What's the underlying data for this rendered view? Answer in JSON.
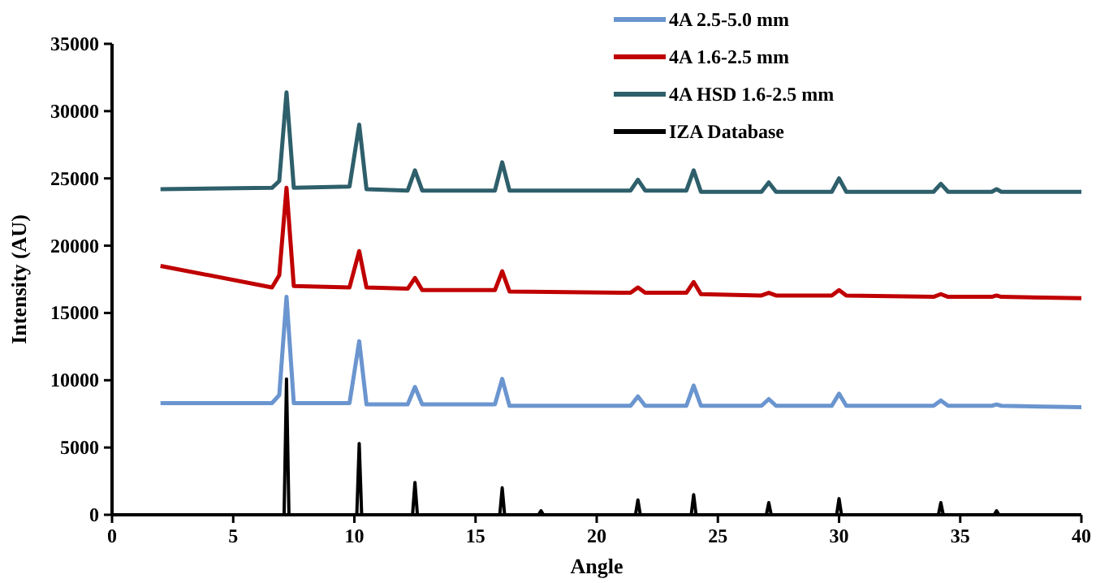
{
  "chart_data": {
    "type": "line",
    "xlabel": "Angle",
    "ylabel": "Intensity (AU)",
    "xlim": [
      0,
      40
    ],
    "xticks": [
      0,
      5,
      10,
      15,
      20,
      25,
      30,
      35,
      40
    ],
    "ylim": [
      0,
      35000
    ],
    "yticks": [
      0,
      5000,
      10000,
      15000,
      20000,
      25000,
      30000,
      35000
    ],
    "grid": false,
    "legend": "top right",
    "marker": "none",
    "line_style": "solid",
    "series": [
      {
        "name": "4A 2.5-5.0 mm",
        "color": "#6a95cf",
        "x": [
          2,
          6.6,
          6.9,
          7.2,
          7.5,
          9.8,
          10.2,
          10.5,
          12.2,
          12.5,
          12.8,
          15.8,
          16.1,
          16.4,
          21.4,
          21.7,
          22.0,
          23.7,
          24.0,
          24.3,
          26.8,
          27.1,
          27.4,
          29.7,
          30.0,
          30.3,
          33.9,
          34.2,
          34.5,
          36.3,
          36.5,
          36.7,
          40
        ],
        "values": [
          8300,
          8300,
          8900,
          16200,
          8300,
          8300,
          12900,
          8200,
          8200,
          9500,
          8200,
          8200,
          10100,
          8100,
          8100,
          8800,
          8100,
          8100,
          9600,
          8100,
          8100,
          8600,
          8100,
          8100,
          9000,
          8100,
          8100,
          8500,
          8100,
          8100,
          8200,
          8100,
          8000
        ]
      },
      {
        "name": "4A 1.6-2.5 mm",
        "color": "#c00000",
        "x": [
          2,
          6.6,
          6.9,
          7.2,
          7.5,
          9.8,
          10.2,
          10.5,
          12.2,
          12.5,
          12.8,
          15.8,
          16.1,
          16.4,
          21.4,
          21.7,
          22.0,
          23.7,
          24.0,
          24.3,
          26.8,
          27.1,
          27.4,
          29.7,
          30.0,
          30.3,
          33.9,
          34.2,
          34.5,
          36.3,
          36.5,
          36.7,
          40
        ],
        "values": [
          18500,
          16900,
          17800,
          24300,
          17000,
          16900,
          19600,
          16900,
          16800,
          17600,
          16700,
          16700,
          18100,
          16600,
          16500,
          16900,
          16500,
          16500,
          17300,
          16400,
          16300,
          16500,
          16300,
          16300,
          16700,
          16300,
          16200,
          16400,
          16200,
          16200,
          16300,
          16200,
          16100
        ]
      },
      {
        "name": "4A HSD 1.6-2.5 mm",
        "color": "#2e5f6b",
        "x": [
          2,
          6.6,
          6.9,
          7.2,
          7.5,
          9.8,
          10.2,
          10.5,
          12.2,
          12.5,
          12.8,
          15.8,
          16.1,
          16.4,
          21.4,
          21.7,
          22.0,
          23.7,
          24.0,
          24.3,
          26.8,
          27.1,
          27.4,
          29.7,
          30.0,
          30.3,
          33.9,
          34.2,
          34.5,
          36.3,
          36.5,
          36.7,
          40
        ],
        "values": [
          24200,
          24300,
          24800,
          31400,
          24300,
          24400,
          29000,
          24200,
          24100,
          25600,
          24100,
          24100,
          26200,
          24100,
          24100,
          24900,
          24100,
          24100,
          25600,
          24000,
          24000,
          24700,
          24000,
          24000,
          25000,
          24000,
          24000,
          24600,
          24000,
          24000,
          24200,
          24000,
          24000
        ]
      },
      {
        "name": "IZA Database",
        "color": "#000000",
        "x": [
          2,
          7.1,
          7.2,
          7.3,
          10.1,
          10.2,
          10.3,
          12.4,
          12.5,
          12.6,
          16.0,
          16.1,
          16.2,
          17.6,
          17.7,
          17.8,
          21.6,
          21.7,
          21.8,
          23.9,
          24.0,
          24.1,
          27.0,
          27.1,
          27.2,
          29.9,
          30.0,
          30.1,
          34.1,
          34.2,
          34.3,
          36.4,
          36.5,
          36.6,
          40
        ],
        "values": [
          0,
          0,
          10100,
          0,
          0,
          5300,
          0,
          0,
          2400,
          0,
          0,
          2000,
          0,
          0,
          300,
          0,
          0,
          1100,
          0,
          0,
          1500,
          0,
          0,
          900,
          0,
          0,
          1200,
          0,
          0,
          900,
          0,
          0,
          300,
          0,
          0
        ]
      }
    ]
  }
}
